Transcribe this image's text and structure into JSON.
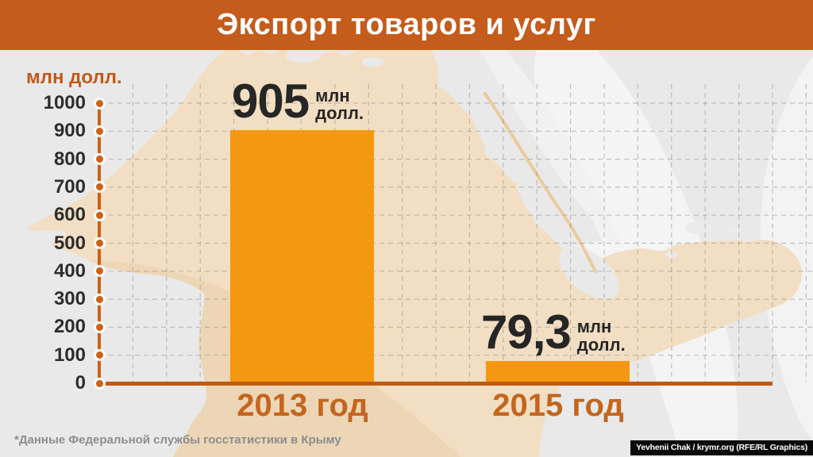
{
  "header": {
    "title": "Экспорт товаров и услуг"
  },
  "chart_data": {
    "type": "bar",
    "title": "Экспорт товаров и услуг",
    "ylabel": "млн долл.",
    "xlabel": "",
    "categories": [
      "2013 год",
      "2015 год"
    ],
    "values": [
      905,
      79.3
    ],
    "value_labels": [
      {
        "number": "905",
        "unit_line1": "млн",
        "unit_line2": "долл."
      },
      {
        "number": "79,3",
        "unit_line1": "млн",
        "unit_line2": "долл."
      }
    ],
    "ylim": [
      0,
      1000
    ],
    "ytick_step": 100,
    "grid": "dashed",
    "legend": "none"
  },
  "footnote": "*Данные Федеральной службы госстатистики в Крыму",
  "credit": "Yevhenii Chak / krymr.org (RFE/RL Graphics)",
  "colors": {
    "background": "#e9e9e9",
    "header": "#c45c1b",
    "bar": "#f49812",
    "axis": "#cc6118",
    "baseline": "#bf5a13",
    "tick": "#2d2d2d",
    "value": "#262626",
    "cat": "#c2661f",
    "axis_title": "#c4581b",
    "footnote": "#8e8e8e",
    "map": "#f2dfc3",
    "grid": "#8c8c8c"
  }
}
